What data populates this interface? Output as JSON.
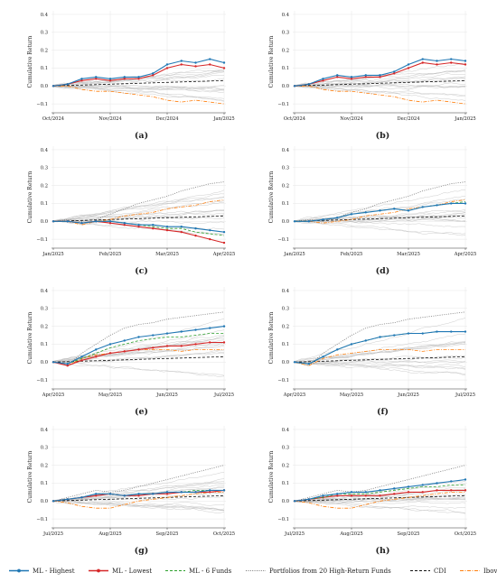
{
  "chart_data": {
    "type": "line",
    "ylabel": "Cumulative Return",
    "ylim": [
      -0.15,
      0.42
    ],
    "yticks": [
      "0.4",
      "0.3",
      "0.2",
      "0.1",
      "0.0",
      "−0.1"
    ],
    "ytick_values": [
      0.4,
      0.3,
      0.2,
      0.1,
      0.0,
      -0.1
    ],
    "grid": true,
    "legend_position": "bottom",
    "legend": [
      {
        "key": "ml_highest",
        "label": "ML - Highest",
        "color": "#1f77b4",
        "style": "line-marker"
      },
      {
        "key": "ml_lowest",
        "label": "ML - Lowest",
        "color": "#d62728",
        "style": "line-marker"
      },
      {
        "key": "ml_6funds",
        "label": "ML - 6 Funds",
        "color": "#2ca02c",
        "style": "dashed"
      },
      {
        "key": "portfolios20",
        "label": "Portfolios from 20 High-Return Funds",
        "color": "#777777",
        "style": "dotted"
      },
      {
        "key": "cdi",
        "label": "CDI",
        "color": "#111111",
        "style": "dashed"
      },
      {
        "key": "ibov",
        "label": "Ibov.",
        "color": "#ff7f0e",
        "style": "dashdot"
      }
    ],
    "panels": [
      {
        "label": "(a)",
        "xticks": [
          "Oct/2024",
          "Nov/2024",
          "Dec/2024",
          "Jan/2025"
        ],
        "x": [
          0,
          1,
          2,
          3,
          4,
          5,
          6,
          7,
          8,
          9,
          10,
          11,
          12
        ],
        "series": [
          {
            "key": "ml_highest",
            "values": [
              0,
              0.01,
              0.04,
              0.05,
              0.04,
              0.05,
              0.05,
              0.07,
              0.12,
              0.14,
              0.13,
              0.15,
              0.13
            ]
          },
          {
            "key": "ml_lowest",
            "values": [
              0,
              0.01,
              0.03,
              0.04,
              0.03,
              0.04,
              0.04,
              0.06,
              0.1,
              0.12,
              0.11,
              0.12,
              0.1
            ]
          },
          {
            "key": "cdi",
            "values": [
              0,
              0.0025,
              0.005,
              0.0075,
              0.01,
              0.0125,
              0.015,
              0.0175,
              0.02,
              0.0225,
              0.025,
              0.0275,
              0.03
            ]
          },
          {
            "key": "ibov",
            "values": [
              0,
              0.0,
              -0.02,
              -0.03,
              -0.03,
              -0.04,
              -0.05,
              -0.06,
              -0.08,
              -0.09,
              -0.08,
              -0.09,
              -0.1
            ]
          }
        ]
      },
      {
        "label": "(b)",
        "xticks": [
          "Oct/2024",
          "Nov/2024",
          "Dec/2024",
          "Jan/2025"
        ],
        "x": [
          0,
          1,
          2,
          3,
          4,
          5,
          6,
          7,
          8,
          9,
          10,
          11,
          12
        ],
        "series": [
          {
            "key": "ml_highest",
            "values": [
              0,
              0.01,
              0.04,
              0.06,
              0.05,
              0.06,
              0.06,
              0.08,
              0.12,
              0.15,
              0.14,
              0.15,
              0.14
            ]
          },
          {
            "key": "ml_lowest",
            "values": [
              0,
              0.01,
              0.03,
              0.05,
              0.04,
              0.05,
              0.05,
              0.07,
              0.1,
              0.13,
              0.12,
              0.13,
              0.12
            ]
          },
          {
            "key": "cdi",
            "values": [
              0,
              0.0025,
              0.005,
              0.0075,
              0.01,
              0.0125,
              0.015,
              0.0175,
              0.02,
              0.0225,
              0.025,
              0.0275,
              0.03
            ]
          },
          {
            "key": "ibov",
            "values": [
              0,
              0.0,
              -0.02,
              -0.03,
              -0.03,
              -0.04,
              -0.05,
              -0.06,
              -0.08,
              -0.09,
              -0.08,
              -0.09,
              -0.1
            ]
          }
        ]
      },
      {
        "label": "(c)",
        "xticks": [
          "Jan/2025",
          "Feb/2025",
          "Mar/2025",
          "Apr/2025"
        ],
        "x": [
          0,
          1,
          2,
          3,
          4,
          5,
          6,
          7,
          8,
          9,
          10,
          11,
          12
        ],
        "series": [
          {
            "key": "ml_highest",
            "values": [
              0,
              0.0,
              -0.01,
              0.0,
              0.0,
              -0.01,
              -0.02,
              -0.02,
              -0.03,
              -0.03,
              -0.04,
              -0.05,
              -0.06
            ]
          },
          {
            "key": "ml_lowest",
            "values": [
              0,
              0.0,
              -0.01,
              0.0,
              -0.01,
              -0.02,
              -0.03,
              -0.04,
              -0.05,
              -0.06,
              -0.08,
              -0.1,
              -0.12
            ]
          },
          {
            "key": "ml_6funds",
            "values": [
              0,
              0.0,
              -0.01,
              0.0,
              0.0,
              -0.01,
              -0.02,
              -0.03,
              -0.04,
              -0.04,
              -0.06,
              -0.07,
              -0.08
            ]
          },
          {
            "key": "portfolios20",
            "values": [
              0,
              0.01,
              0.0,
              0.01,
              0.04,
              0.07,
              0.1,
              0.12,
              0.14,
              0.17,
              0.19,
              0.21,
              0.22
            ]
          },
          {
            "key": "cdi",
            "values": [
              0,
              0.0025,
              0.005,
              0.0075,
              0.01,
              0.0125,
              0.015,
              0.0175,
              0.02,
              0.0225,
              0.025,
              0.0275,
              0.03
            ]
          },
          {
            "key": "ibov",
            "values": [
              0,
              0.0,
              -0.02,
              0.0,
              0.01,
              0.03,
              0.04,
              0.05,
              0.07,
              0.08,
              0.09,
              0.11,
              0.12
            ]
          }
        ]
      },
      {
        "label": "(d)",
        "xticks": [
          "Jan/2025",
          "Feb/2025",
          "Mar/2025",
          "Apr/2025"
        ],
        "x": [
          0,
          1,
          2,
          3,
          4,
          5,
          6,
          7,
          8,
          9,
          10,
          11,
          12
        ],
        "series": [
          {
            "key": "ml_highest",
            "values": [
              0,
              0.0,
              0.01,
              0.02,
              0.04,
              0.05,
              0.06,
              0.07,
              0.06,
              0.08,
              0.09,
              0.1,
              0.1
            ]
          },
          {
            "key": "ml_6funds",
            "values": [
              0,
              0.0,
              0.01,
              0.02,
              0.04,
              0.05,
              0.06,
              0.07,
              0.06,
              0.08,
              0.09,
              0.1,
              0.11
            ]
          },
          {
            "key": "portfolios20",
            "values": [
              0,
              0.01,
              0.0,
              0.02,
              0.05,
              0.07,
              0.1,
              0.12,
              0.14,
              0.17,
              0.19,
              0.21,
              0.22
            ]
          },
          {
            "key": "cdi",
            "values": [
              0,
              0.0025,
              0.005,
              0.0075,
              0.01,
              0.0125,
              0.015,
              0.0175,
              0.02,
              0.0225,
              0.025,
              0.0275,
              0.03
            ]
          },
          {
            "key": "ibov",
            "values": [
              0,
              0.0,
              -0.01,
              0.0,
              0.01,
              0.03,
              0.04,
              0.05,
              0.07,
              0.08,
              0.09,
              0.11,
              0.12
            ]
          }
        ]
      },
      {
        "label": "(e)",
        "xticks": [
          "Apr/2025",
          "May/2025",
          "Jun/2025",
          "Jul/2025"
        ],
        "x": [
          0,
          1,
          2,
          3,
          4,
          5,
          6,
          7,
          8,
          9,
          10,
          11,
          12
        ],
        "series": [
          {
            "key": "ml_highest",
            "values": [
              0,
              -0.01,
              0.03,
              0.07,
              0.1,
              0.12,
              0.14,
              0.15,
              0.16,
              0.17,
              0.18,
              0.19,
              0.2
            ]
          },
          {
            "key": "ml_lowest",
            "values": [
              0,
              -0.02,
              0.01,
              0.03,
              0.05,
              0.06,
              0.07,
              0.08,
              0.09,
              0.09,
              0.1,
              0.11,
              0.11
            ]
          },
          {
            "key": "ml_6funds",
            "values": [
              0,
              -0.01,
              0.02,
              0.05,
              0.08,
              0.1,
              0.12,
              0.13,
              0.14,
              0.14,
              0.15,
              0.16,
              0.16
            ]
          },
          {
            "key": "portfolios20",
            "values": [
              0,
              -0.02,
              0.05,
              0.1,
              0.15,
              0.19,
              0.21,
              0.22,
              0.24,
              0.25,
              0.26,
              0.27,
              0.28
            ]
          },
          {
            "key": "cdi",
            "values": [
              0,
              0.0025,
              0.005,
              0.0075,
              0.01,
              0.0125,
              0.015,
              0.0175,
              0.02,
              0.0225,
              0.025,
              0.0275,
              0.03
            ]
          },
          {
            "key": "ibov",
            "values": [
              0,
              -0.02,
              0.02,
              0.04,
              0.05,
              0.06,
              0.07,
              0.07,
              0.07,
              0.06,
              0.07,
              0.07,
              0.07
            ]
          }
        ]
      },
      {
        "label": "(f)",
        "xticks": [
          "Apr/2025",
          "May/2025",
          "Jun/2025",
          "Jul/2025"
        ],
        "x": [
          0,
          1,
          2,
          3,
          4,
          5,
          6,
          7,
          8,
          9,
          10,
          11,
          12
        ],
        "series": [
          {
            "key": "ml_highest",
            "values": [
              0,
              -0.01,
              0.03,
              0.07,
              0.1,
              0.12,
              0.14,
              0.15,
              0.16,
              0.16,
              0.17,
              0.17,
              0.17
            ]
          },
          {
            "key": "ml_6funds",
            "values": [
              0,
              -0.01,
              0.03,
              0.07,
              0.1,
              0.12,
              0.14,
              0.15,
              0.16,
              0.16,
              0.17,
              0.17,
              0.17
            ]
          },
          {
            "key": "portfolios20",
            "values": [
              0,
              -0.02,
              0.05,
              0.1,
              0.15,
              0.19,
              0.21,
              0.22,
              0.24,
              0.25,
              0.26,
              0.27,
              0.28
            ]
          },
          {
            "key": "cdi",
            "values": [
              0,
              0.0025,
              0.005,
              0.0075,
              0.01,
              0.0125,
              0.015,
              0.0175,
              0.02,
              0.0225,
              0.025,
              0.0275,
              0.03
            ]
          },
          {
            "key": "ibov",
            "values": [
              0,
              -0.02,
              0.02,
              0.04,
              0.05,
              0.06,
              0.07,
              0.07,
              0.07,
              0.06,
              0.07,
              0.07,
              0.07
            ]
          }
        ]
      },
      {
        "label": "(g)",
        "xticks": [
          "Jul/2025",
          "Aug/2025",
          "Sep/2025",
          "Oct/2025"
        ],
        "x": [
          0,
          1,
          2,
          3,
          4,
          5,
          6,
          7,
          8,
          9,
          10,
          11,
          12
        ],
        "series": [
          {
            "key": "ml_highest",
            "values": [
              0,
              0.01,
              0.02,
              0.04,
              0.04,
              0.03,
              0.04,
              0.04,
              0.05,
              0.05,
              0.05,
              0.06,
              0.06
            ]
          },
          {
            "key": "ml_lowest",
            "values": [
              0,
              0.01,
              0.02,
              0.03,
              0.04,
              0.03,
              0.03,
              0.04,
              0.04,
              0.05,
              0.05,
              0.05,
              0.06
            ]
          },
          {
            "key": "ml_6funds",
            "values": [
              0,
              0.01,
              0.02,
              0.04,
              0.04,
              0.03,
              0.04,
              0.04,
              0.05,
              0.05,
              0.06,
              0.06,
              0.06
            ]
          },
          {
            "key": "portfolios20",
            "values": [
              0,
              0.02,
              0.04,
              0.06,
              0.05,
              0.06,
              0.08,
              0.1,
              0.12,
              0.14,
              0.16,
              0.18,
              0.2
            ]
          },
          {
            "key": "cdi",
            "values": [
              0,
              0.0025,
              0.005,
              0.0075,
              0.01,
              0.0125,
              0.015,
              0.0175,
              0.02,
              0.0225,
              0.025,
              0.0275,
              0.03
            ]
          },
          {
            "key": "ibov",
            "values": [
              0,
              -0.01,
              -0.03,
              -0.04,
              -0.04,
              -0.02,
              0.0,
              0.01,
              0.02,
              0.03,
              0.04,
              0.05,
              0.05
            ]
          }
        ]
      },
      {
        "label": "(h)",
        "xticks": [
          "Jul/2025",
          "Aug/2025",
          "Sep/2025",
          "Oct/2025"
        ],
        "x": [
          0,
          1,
          2,
          3,
          4,
          5,
          6,
          7,
          8,
          9,
          10,
          11,
          12
        ],
        "series": [
          {
            "key": "ml_highest",
            "values": [
              0,
              0.01,
              0.03,
              0.04,
              0.05,
              0.05,
              0.06,
              0.07,
              0.08,
              0.09,
              0.1,
              0.11,
              0.12
            ]
          },
          {
            "key": "ml_lowest",
            "values": [
              0,
              0.01,
              0.02,
              0.03,
              0.03,
              0.03,
              0.03,
              0.04,
              0.05,
              0.05,
              0.06,
              0.06,
              0.06
            ]
          },
          {
            "key": "ml_6funds",
            "values": [
              0,
              0.01,
              0.02,
              0.04,
              0.04,
              0.04,
              0.05,
              0.06,
              0.07,
              0.08,
              0.08,
              0.09,
              0.09
            ]
          },
          {
            "key": "portfolios20",
            "values": [
              0,
              0.02,
              0.04,
              0.06,
              0.05,
              0.06,
              0.08,
              0.1,
              0.12,
              0.14,
              0.16,
              0.18,
              0.2
            ]
          },
          {
            "key": "cdi",
            "values": [
              0,
              0.0025,
              0.005,
              0.0075,
              0.01,
              0.0125,
              0.015,
              0.0175,
              0.02,
              0.0225,
              0.025,
              0.0275,
              0.03
            ]
          },
          {
            "key": "ibov",
            "values": [
              0,
              -0.01,
              -0.03,
              -0.04,
              -0.04,
              -0.02,
              0.0,
              0.01,
              0.02,
              0.03,
              0.04,
              0.05,
              0.05
            ]
          }
        ]
      }
    ]
  }
}
